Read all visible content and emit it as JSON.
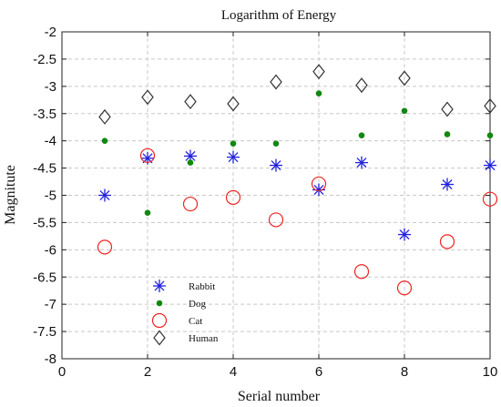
{
  "chart_data": {
    "type": "scatter",
    "title": "Logarithm of Energy",
    "xlabel": "Serial number",
    "ylabel": "Magnitute",
    "xlim": [
      0,
      10
    ],
    "ylim": [
      -8,
      -2
    ],
    "xticks": [
      0,
      2,
      4,
      6,
      8,
      10
    ],
    "yticks": [
      -2,
      -2.5,
      -3,
      -3.5,
      -4,
      -4.5,
      -5,
      -5.5,
      -6,
      -6.5,
      -7,
      -7.5,
      -8
    ],
    "grid": true,
    "legend_position": "bottom-left",
    "x": [
      1,
      2,
      3,
      4,
      5,
      6,
      7,
      8,
      9,
      10
    ],
    "series": [
      {
        "name": "Rabbit",
        "marker": "star",
        "color": "#2222dd",
        "values": [
          -5.0,
          -4.32,
          -4.28,
          -4.3,
          -4.45,
          -4.9,
          -4.4,
          -5.72,
          -4.8,
          -4.45
        ]
      },
      {
        "name": "Dog",
        "marker": "dot",
        "color": "#118811",
        "values": [
          -4.0,
          -5.32,
          -4.4,
          -4.05,
          -4.05,
          -3.13,
          -3.9,
          -3.45,
          -3.88,
          -3.9
        ]
      },
      {
        "name": "Cat",
        "marker": "circle",
        "color": "#ee2222",
        "values": [
          -5.95,
          -4.27,
          -5.16,
          -5.04,
          -5.45,
          -4.79,
          -6.4,
          -6.7,
          -5.85,
          -5.07
        ]
      },
      {
        "name": "Human",
        "marker": "diamond",
        "color": "#333333",
        "values": [
          -3.56,
          -3.2,
          -3.28,
          -3.32,
          -2.92,
          -2.73,
          -2.98,
          -2.85,
          -3.42,
          -3.36
        ]
      }
    ]
  }
}
